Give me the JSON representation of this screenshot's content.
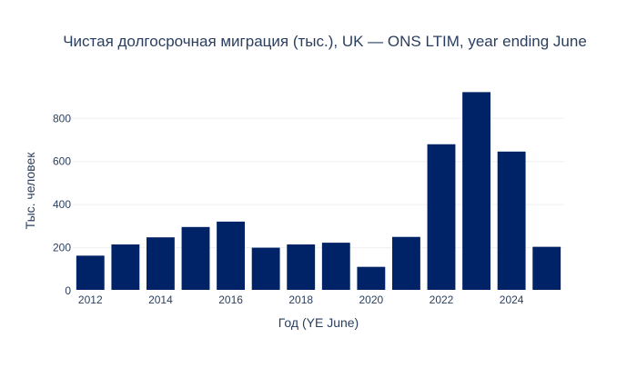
{
  "chart_data": {
    "type": "bar",
    "title": "Чистая долгосрочная миграция (тыс.), UK — ONS LTIM, year ending June",
    "xlabel": "Год (YE June)",
    "ylabel": "Тыс. человек",
    "x": [
      2012,
      2013,
      2014,
      2015,
      2016,
      2017,
      2018,
      2019,
      2020,
      2021,
      2022,
      2023,
      2024,
      2025
    ],
    "values": [
      163,
      215,
      248,
      296,
      321,
      200,
      215,
      223,
      111,
      250,
      680,
      922,
      646,
      204
    ],
    "xlim": [
      2011.5,
      2025.5
    ],
    "ylim": [
      0,
      970
    ],
    "xticks": [
      2012,
      2014,
      2016,
      2018,
      2020,
      2022,
      2024
    ],
    "xtick_labels": [
      "2012",
      "2014",
      "2016",
      "2018",
      "2020",
      "2022",
      "2024"
    ],
    "yticks": [
      0,
      200,
      400,
      600,
      800
    ],
    "ytick_labels": [
      "0",
      "200",
      "400",
      "600",
      "800"
    ],
    "grid": "horizontal",
    "legend": "none",
    "colors": {
      "bar": "#002266",
      "grid": "#eef0f4",
      "text": "#2a3f5f",
      "zeroline": "#ffffff"
    }
  }
}
